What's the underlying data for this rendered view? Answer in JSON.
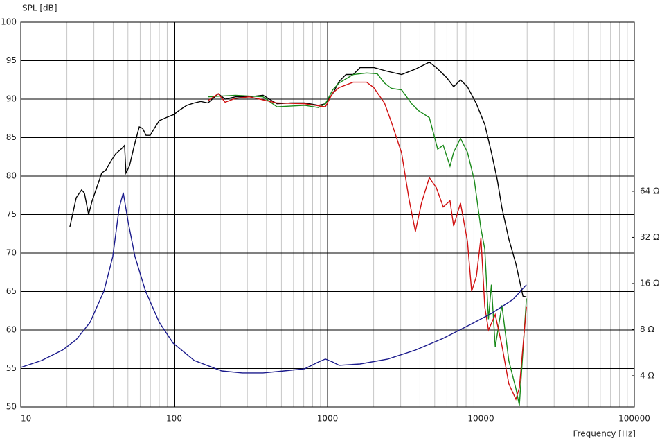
{
  "chart_data": {
    "type": "line",
    "y_label": "SPL [dB]",
    "x_label": "Frequency [Hz]",
    "xscale": "log",
    "xlim": [
      10,
      100000
    ],
    "xticks": [
      10,
      100,
      1000,
      10000,
      100000
    ],
    "xminor": [
      20,
      30,
      40,
      50,
      60,
      70,
      80,
      90,
      200,
      300,
      400,
      500,
      600,
      700,
      800,
      900,
      2000,
      3000,
      4000,
      5000,
      6000,
      7000,
      8000,
      9000,
      20000,
      30000,
      40000,
      50000,
      60000,
      70000,
      80000,
      90000
    ],
    "ylim": [
      50,
      100
    ],
    "yticks": [
      50,
      55,
      60,
      65,
      70,
      75,
      80,
      85,
      90,
      95,
      100
    ],
    "y2scale": "log",
    "y2lim": [
      2.5,
      814
    ],
    "y2ticks": [
      {
        "value": 4,
        "label": "4 Ω"
      },
      {
        "value": 8,
        "label": "8 Ω"
      },
      {
        "value": 16,
        "label": "16 Ω"
      },
      {
        "value": 32,
        "label": "32 Ω"
      },
      {
        "value": 64,
        "label": "64 Ω"
      }
    ],
    "grid": true,
    "series": [
      {
        "color": "#000000",
        "x": [
          20.9,
          23.0,
          24.9,
          26.0,
          27.7,
          29.2,
          31.4,
          33.7,
          35.9,
          38.6,
          41.6,
          45.6,
          47.5,
          48.5,
          51.1,
          55.0,
          59.2,
          62.3,
          65.6,
          69.8,
          74.3,
          80.0,
          88.7,
          99.5,
          109,
          121,
          135,
          149,
          166,
          194,
          215,
          251,
          309,
          380,
          468,
          577,
          710,
          873,
          968,
          1020,
          1080,
          1190,
          1320,
          1470,
          1630,
          2000,
          2470,
          3040,
          3740,
          4610,
          5120,
          5980,
          6640,
          7360,
          8170,
          9350,
          10600,
          11700,
          12800,
          13700,
          15200,
          16900,
          18800,
          19800
        ],
        "values": [
          73.4,
          77.2,
          78.2,
          77.8,
          75.0,
          76.8,
          78.6,
          80.4,
          80.8,
          81.9,
          82.9,
          83.6,
          84.0,
          80.4,
          81.3,
          84.0,
          86.4,
          86.2,
          85.3,
          85.3,
          86.2,
          87.2,
          87.6,
          88.0,
          88.6,
          89.2,
          89.5,
          89.7,
          89.5,
          90.7,
          90.0,
          90.3,
          90.3,
          90.5,
          89.4,
          89.5,
          89.5,
          89.2,
          89.4,
          90.1,
          90.7,
          92.3,
          93.2,
          93.2,
          94.1,
          94.1,
          93.6,
          93.2,
          93.9,
          94.8,
          94.1,
          92.8,
          91.6,
          92.5,
          91.6,
          89.4,
          86.7,
          83.1,
          79.5,
          75.9,
          71.8,
          68.6,
          64.4,
          64.3
        ]
      },
      {
        "color": "#1a8a1a",
        "x": [
          166,
          251,
          380,
          468,
          710,
          873,
          968,
          1080,
          1190,
          1470,
          1800,
          2110,
          2350,
          2610,
          3040,
          3540,
          3920,
          4610,
          5230,
          5680,
          6290,
          6640,
          7360,
          8170,
          9050,
          10000,
          10600,
          11200,
          11700,
          12400,
          13700,
          15200,
          16900,
          17800,
          19800
        ],
        "values": [
          90.3,
          90.5,
          90.3,
          89.0,
          89.2,
          88.9,
          89.4,
          91.2,
          92.1,
          93.2,
          93.4,
          93.3,
          92.1,
          91.4,
          91.2,
          89.4,
          88.5,
          87.6,
          83.5,
          84.0,
          81.3,
          83.1,
          84.9,
          83.1,
          79.5,
          73.2,
          70.5,
          61.4,
          65.9,
          57.8,
          63.2,
          56.0,
          52.4,
          50.2,
          64.1
        ]
      },
      {
        "color": "#d01010",
        "x": [
          166,
          194,
          215,
          251,
          309,
          380,
          468,
          710,
          968,
          1080,
          1190,
          1470,
          1800,
          2000,
          2350,
          2610,
          3040,
          3400,
          3740,
          4100,
          4610,
          5120,
          5680,
          6290,
          6640,
          7360,
          8170,
          8700,
          9350,
          10000,
          10600,
          11200,
          12400,
          13700,
          15200,
          16900,
          17800,
          19800
        ],
        "values": [
          89.8,
          90.7,
          89.6,
          90.1,
          90.3,
          89.9,
          89.5,
          89.4,
          89.0,
          90.8,
          91.5,
          92.2,
          92.2,
          91.5,
          89.5,
          87.0,
          83.0,
          77.0,
          72.8,
          76.5,
          79.8,
          78.5,
          76.0,
          76.8,
          73.5,
          76.5,
          71.5,
          65.0,
          67.0,
          72.0,
          63.0,
          60.0,
          62.0,
          58.0,
          53.0,
          51.0,
          52.5,
          63.0
        ]
      },
      {
        "color": "#1a1a8c",
        "axis": "y2",
        "x": [
          10,
          13.7,
          18.7,
          23.0,
          28.3,
          34.9,
          39.8,
          43.8,
          46.6,
          50.1,
          55.5,
          65.0,
          80.0,
          98.5,
          135,
          204,
          278,
          380,
          520,
          710,
          873,
          968,
          1080,
          1190,
          1630,
          2470,
          3740,
          5680,
          8570,
          11700,
          16200,
          19800
        ],
        "values": [
          4.53,
          5.03,
          5.88,
          6.88,
          8.93,
          14.3,
          24.0,
          49.8,
          62.7,
          40.5,
          24.0,
          14.3,
          8.93,
          6.53,
          5.03,
          4.3,
          4.17,
          4.17,
          4.3,
          4.44,
          4.92,
          5.14,
          4.92,
          4.68,
          4.77,
          5.14,
          5.88,
          7.02,
          8.65,
          10.2,
          12.6,
          15.7
        ]
      }
    ]
  }
}
